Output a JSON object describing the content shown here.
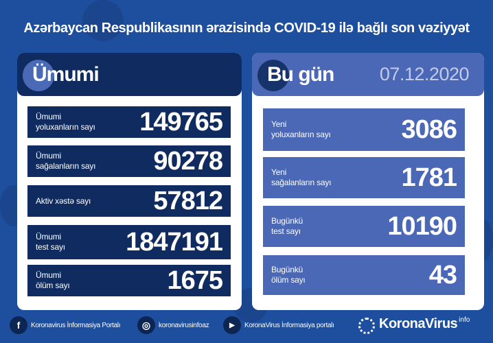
{
  "title": "Azərbaycan Respublikasının ərazisində COVID-19 ilə bağlı son vəziyyət",
  "left": {
    "heading": "Ümumi",
    "rows": [
      {
        "label1": "Ümumi",
        "label2": "yoluxanların sayı",
        "value": "149765"
      },
      {
        "label1": "Ümumi",
        "label2": "sağalanların sayı",
        "value": "90278"
      },
      {
        "label1": "Aktiv xəstə sayı",
        "label2": "",
        "value": "57812"
      },
      {
        "label1": "Ümumi",
        "label2": "test sayı",
        "value": "1847191"
      },
      {
        "label1": "Ümumi",
        "label2": "ölüm sayı",
        "value": "1675"
      }
    ]
  },
  "right": {
    "heading": "Bu gün",
    "date": "07.12.2020",
    "rows": [
      {
        "label1": "Yeni",
        "label2": "yoluxanların sayı",
        "value": "3086"
      },
      {
        "label1": "Yeni",
        "label2": "sağalanların sayı",
        "value": "1781"
      },
      {
        "label1": "Bugünkü",
        "label2": "test sayı",
        "value": "10190"
      },
      {
        "label1": "Bugünkü",
        "label2": "ölüm sayı",
        "value": "43"
      }
    ]
  },
  "footer": {
    "facebook": "Koronavirus İnformasiya Portalı",
    "instagram": "koronavirusinfoaz",
    "youtube": "KoronaVirus İnformasiya portalı",
    "logo": "KoronaVirus",
    "logo_sup": "info"
  },
  "colors": {
    "background": "#1d4f9e",
    "dark_navy": "#0f2b5f",
    "today_blue": "#4b68b6"
  }
}
